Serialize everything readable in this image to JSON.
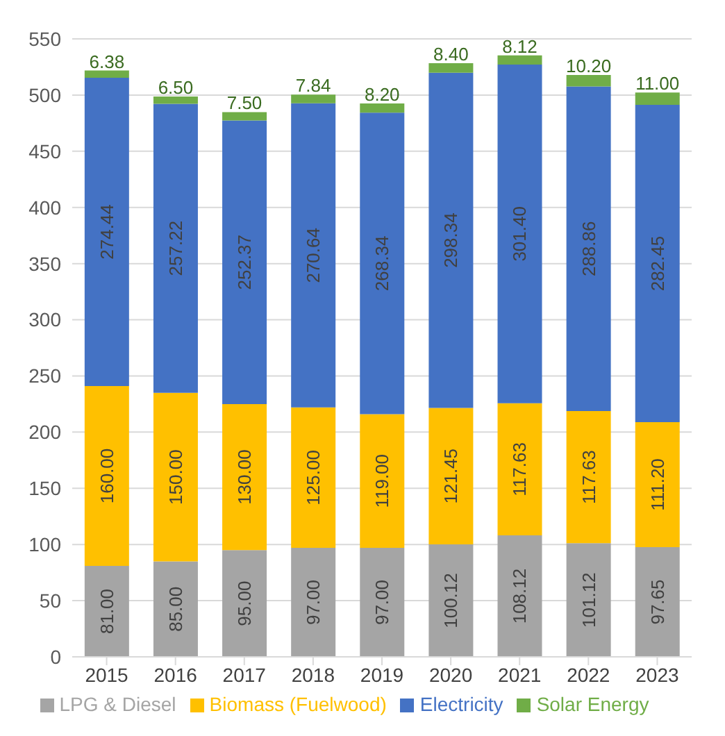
{
  "chart_data": {
    "type": "bar",
    "stacked": true,
    "categories": [
      "2015",
      "2016",
      "2017",
      "2018",
      "2019",
      "2020",
      "2021",
      "2022",
      "2023"
    ],
    "series": [
      {
        "name": "LPG & Diesel",
        "color": "#a5a5a5",
        "values": [
          81.0,
          85.0,
          95.0,
          97.0,
          97.0,
          100.12,
          108.12,
          101.12,
          97.65
        ],
        "value_labels": [
          "81.00",
          "85.00",
          "95.00",
          "97.00",
          "97.00",
          "100.12",
          "108.12",
          "101.12",
          "97.65"
        ]
      },
      {
        "name": "Biomass (Fuelwood)",
        "color": "#ffc000",
        "values": [
          160.0,
          150.0,
          130.0,
          125.0,
          119.0,
          121.45,
          117.63,
          117.63,
          111.2
        ],
        "value_labels": [
          "160.00",
          "150.00",
          "130.00",
          "125.00",
          "119.00",
          "121.45",
          "117.63",
          "117.63",
          "111.20"
        ]
      },
      {
        "name": "Electricity",
        "color": "#4472c4",
        "values": [
          274.44,
          257.22,
          252.37,
          270.64,
          268.34,
          298.34,
          301.4,
          288.86,
          282.45
        ],
        "value_labels": [
          "274.44",
          "257.22",
          "252.37",
          "270.64",
          "268.34",
          "298.34",
          "301.40",
          "288.86",
          "282.45"
        ]
      },
      {
        "name": "Solar Energy",
        "color": "#70ad47",
        "values": [
          6.38,
          6.5,
          7.5,
          7.84,
          8.2,
          8.4,
          8.12,
          10.2,
          11.0
        ],
        "value_labels": [
          "6.38",
          "6.50",
          "7.50",
          "7.84",
          "8.20",
          "8.40",
          "8.12",
          "10.20",
          "11.00"
        ]
      }
    ],
    "ylim": [
      0,
      550
    ],
    "yticks": [
      0,
      50,
      100,
      150,
      200,
      250,
      300,
      350,
      400,
      450,
      500,
      550
    ],
    "grid": "y",
    "legend": "bottom"
  }
}
